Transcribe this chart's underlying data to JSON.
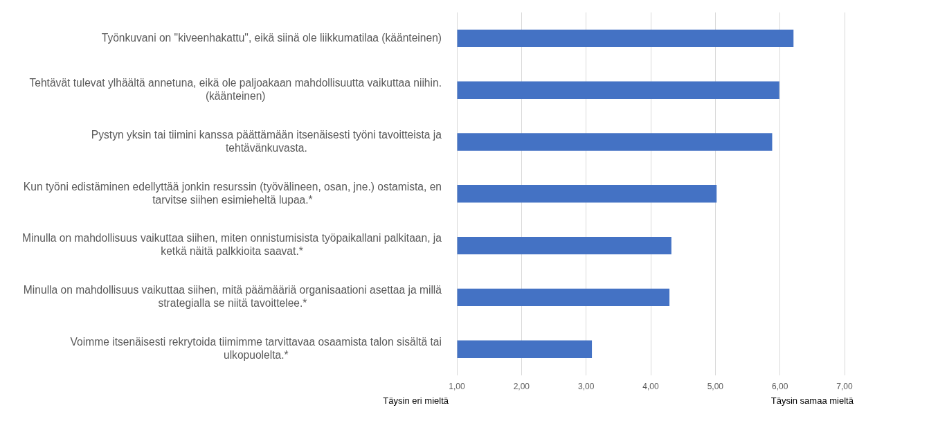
{
  "chart_data": {
    "type": "bar",
    "orientation": "horizontal",
    "categories": [
      "Työnkuvani on \"kiveenhakattu\", eikä siinä ole liikkumatilaa (käänteinen)",
      "Tehtävät tulevat ylhäältä annetuna, eikä ole paljoakaan mahdollisuutta vaikuttaa niihin. (käänteinen)",
      "Pystyn yksin tai tiimini kanssa päättämään itsenäisesti työni tavoitteista ja tehtävänkuvasta.",
      "Kun työni edistäminen edellyttää jonkin resurssin (työvälineen, osan, jne.) ostamista, en tarvitse siihen esimieheltä lupaa.*",
      "Minulla on mahdollisuus vaikuttaa siihen, miten onnistumisista työpaikallani palkitaan, ja ketkä näitä palkkioita saavat.*",
      "Minulla on mahdollisuus vaikuttaa siihen, mitä päämääriä organisaationi asettaa ja millä strategialla se niitä tavoittelee.*",
      "Voimme itsenäisesti rekrytoida tiimimme tarvittavaa osaamista talon sisältä tai ulkopuolelta.*"
    ],
    "values": [
      6.21,
      5.99,
      5.88,
      5.02,
      4.32,
      4.29,
      3.09
    ],
    "color": "#4472c4",
    "xlim": [
      1,
      7
    ],
    "xticks": [
      {
        "value": 1,
        "label": "1,00"
      },
      {
        "value": 2,
        "label": "2,00"
      },
      {
        "value": 3,
        "label": "3,00"
      },
      {
        "value": 4,
        "label": "4,00"
      },
      {
        "value": 5,
        "label": "5,00"
      },
      {
        "value": 6,
        "label": "6,00"
      },
      {
        "value": 7,
        "label": "7,00"
      }
    ],
    "grid": "x",
    "annotations": [
      "Täysin eri mieltä",
      "Täysin samaa mieltä"
    ]
  }
}
